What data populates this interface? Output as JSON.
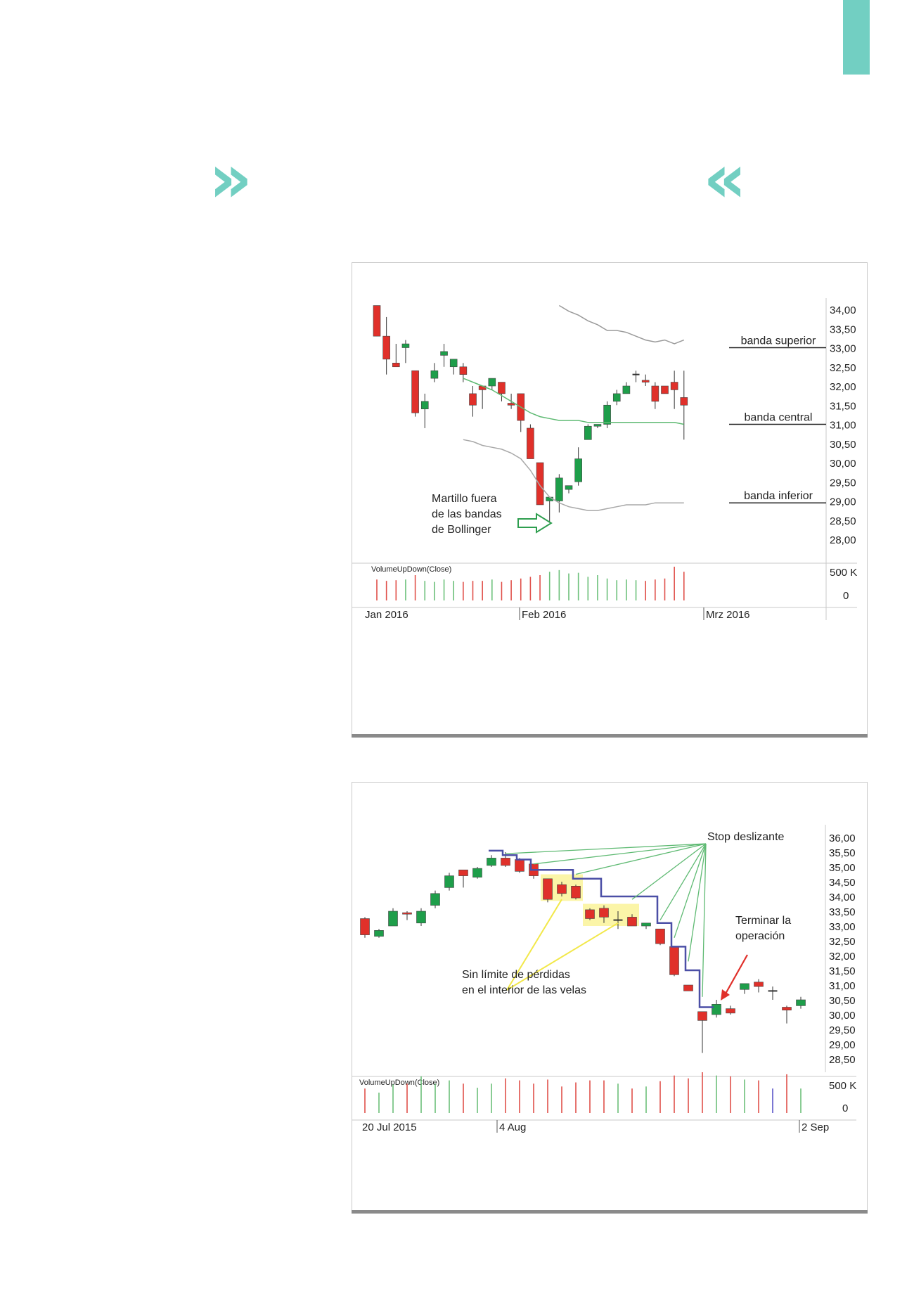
{
  "page": {
    "accent": "#72cfc2",
    "quote_open": "»",
    "quote_close": "«"
  },
  "chart_data": [
    {
      "type": "candlestick",
      "y_ticks": [
        "34,00",
        "33,50",
        "33,00",
        "32,50",
        "32,00",
        "31,50",
        "31,00",
        "30,50",
        "30,00",
        "29,50",
        "29,00",
        "28,50",
        "28,00"
      ],
      "ylim": [
        28.0,
        34.0
      ],
      "x_labels": [
        "Jan 2016",
        "Feb 2016",
        "Mrz 2016"
      ],
      "volume_label": "VolumeUpDown(Close)",
      "volume_ticks": [
        "500 K",
        "0"
      ],
      "annotations": {
        "upper": "banda superior",
        "middle": "banda central",
        "lower": "banda inferior",
        "hammer": [
          "Martillo fuera",
          "de las bandas",
          "de Bollinger"
        ]
      },
      "colors": {
        "up": "#1e9e4a",
        "down": "#e0302a",
        "upper_band": "#9a9a9a",
        "middle_band": "#5fba73",
        "lower_band": "#a8a8a8"
      },
      "candles": [
        {
          "o": 34.1,
          "h": 34.1,
          "l": 33.3,
          "c": 33.3
        },
        {
          "o": 33.3,
          "h": 33.8,
          "l": 32.3,
          "c": 32.7
        },
        {
          "o": 32.6,
          "h": 33.1,
          "l": 32.5,
          "c": 32.5
        },
        {
          "o": 33.0,
          "h": 33.2,
          "l": 32.6,
          "c": 33.1
        },
        {
          "o": 32.4,
          "h": 32.4,
          "l": 31.2,
          "c": 31.3
        },
        {
          "o": 31.4,
          "h": 31.8,
          "l": 30.9,
          "c": 31.6
        },
        {
          "o": 32.2,
          "h": 32.6,
          "l": 32.1,
          "c": 32.4
        },
        {
          "o": 32.8,
          "h": 33.1,
          "l": 32.5,
          "c": 32.9
        },
        {
          "o": 32.5,
          "h": 32.7,
          "l": 32.3,
          "c": 32.7
        },
        {
          "o": 32.5,
          "h": 32.6,
          "l": 32.1,
          "c": 32.3
        },
        {
          "o": 31.8,
          "h": 32.0,
          "l": 31.2,
          "c": 31.5
        },
        {
          "o": 32.0,
          "h": 32.0,
          "l": 31.4,
          "c": 31.9
        },
        {
          "o": 32.0,
          "h": 32.2,
          "l": 31.9,
          "c": 32.2
        },
        {
          "o": 32.1,
          "h": 32.1,
          "l": 31.6,
          "c": 31.8
        },
        {
          "o": 31.55,
          "h": 31.8,
          "l": 31.4,
          "c": 31.5
        },
        {
          "o": 31.8,
          "h": 31.8,
          "l": 30.8,
          "c": 31.1
        },
        {
          "o": 30.9,
          "h": 31.0,
          "l": 30.1,
          "c": 30.1
        },
        {
          "o": 30.0,
          "h": 30.0,
          "l": 28.9,
          "c": 28.9
        },
        {
          "o": 29.0,
          "h": 29.1,
          "l": 28.4,
          "c": 29.1
        },
        {
          "o": 29.0,
          "h": 29.7,
          "l": 28.7,
          "c": 29.6
        },
        {
          "o": 29.3,
          "h": 29.4,
          "l": 29.2,
          "c": 29.4
        },
        {
          "o": 29.5,
          "h": 30.4,
          "l": 29.4,
          "c": 30.1
        },
        {
          "o": 30.6,
          "h": 31.0,
          "l": 30.6,
          "c": 30.95
        },
        {
          "o": 30.95,
          "h": 31.0,
          "l": 30.9,
          "c": 31.0
        },
        {
          "o": 31.0,
          "h": 31.6,
          "l": 30.9,
          "c": 31.5
        },
        {
          "o": 31.6,
          "h": 31.9,
          "l": 31.5,
          "c": 31.8
        },
        {
          "o": 31.8,
          "h": 32.1,
          "l": 31.8,
          "c": 32.0
        },
        {
          "o": 32.3,
          "h": 32.4,
          "l": 32.1,
          "c": 32.3
        },
        {
          "o": 32.15,
          "h": 32.3,
          "l": 32.0,
          "c": 32.1
        },
        {
          "o": 32.0,
          "h": 32.1,
          "l": 31.4,
          "c": 31.6
        },
        {
          "o": 32.0,
          "h": 32.0,
          "l": 31.8,
          "c": 31.8
        },
        {
          "o": 32.1,
          "h": 32.4,
          "l": 31.4,
          "c": 31.9
        },
        {
          "o": 31.7,
          "h": 32.4,
          "l": 30.6,
          "c": 31.5
        }
      ],
      "upper_band": [
        null,
        null,
        null,
        null,
        null,
        null,
        null,
        null,
        null,
        null,
        null,
        null,
        null,
        null,
        null,
        null,
        null,
        null,
        null,
        34.1,
        33.95,
        33.85,
        33.7,
        33.6,
        33.45,
        33.45,
        33.4,
        33.3,
        33.2,
        33.15,
        33.2,
        33.1,
        33.2
      ],
      "middle_band": [
        null,
        null,
        null,
        null,
        null,
        null,
        null,
        null,
        null,
        32.2,
        32.1,
        32.0,
        31.9,
        31.75,
        31.6,
        31.45,
        31.3,
        31.2,
        31.15,
        31.1,
        31.1,
        31.1,
        31.05,
        31.05,
        31.05,
        31.05,
        31.05,
        31.05,
        31.05,
        31.05,
        31.05,
        31.05,
        31.0
      ],
      "lower_band": [
        null,
        null,
        null,
        null,
        null,
        null,
        null,
        null,
        null,
        30.6,
        30.55,
        30.45,
        30.4,
        30.35,
        30.25,
        30.1,
        29.8,
        29.4,
        29.1,
        28.95,
        28.85,
        28.8,
        28.75,
        28.75,
        28.8,
        28.85,
        28.9,
        28.9,
        28.9,
        28.95,
        28.95,
        28.95,
        28.95
      ],
      "volume": [
        0.62,
        0.58,
        0.6,
        0.62,
        0.75,
        0.58,
        0.55,
        0.62,
        0.58,
        0.55,
        0.58,
        0.58,
        0.62,
        0.55,
        0.6,
        0.65,
        0.7,
        0.75,
        0.85,
        0.9,
        0.8,
        0.82,
        0.7,
        0.75,
        0.65,
        0.6,
        0.62,
        0.6,
        0.58,
        0.62,
        0.65,
        1.0,
        0.85
      ]
    },
    {
      "type": "candlestick",
      "y_ticks": [
        "36,00",
        "35,50",
        "35,00",
        "34,50",
        "34,00",
        "33,50",
        "33,00",
        "32,50",
        "32,00",
        "31,50",
        "31,00",
        "30,50",
        "30,00",
        "29,50",
        "29,00",
        "28,50"
      ],
      "ylim": [
        28.5,
        36.0
      ],
      "x_labels": [
        "20 Jul 2015",
        "4 Aug",
        "2 Sep"
      ],
      "volume_label": "VolumeUpDown(Close)",
      "volume_ticks": [
        "500 K",
        "0"
      ],
      "annotations": {
        "stop": "Stop deslizante",
        "terminar": [
          "Terminar la",
          "operación"
        ],
        "sin_limite": [
          "Sin límite de pérdidas",
          "en el interior de las velas"
        ]
      },
      "colors": {
        "up": "#1e9e4a",
        "down": "#e0302a",
        "stop_line": "#4b4fa6",
        "pointer": "#5fba73",
        "highlight": "#fbf5a8",
        "sin_pointer": "#f2e84a",
        "arrow": "#e0302a"
      },
      "candles": [
        {
          "o": 33.25,
          "h": 33.3,
          "l": 32.6,
          "c": 32.7
        },
        {
          "o": 32.65,
          "h": 32.9,
          "l": 32.6,
          "c": 32.85
        },
        {
          "o": 33.0,
          "h": 33.6,
          "l": 33.0,
          "c": 33.5
        },
        {
          "o": 33.45,
          "h": 33.5,
          "l": 33.2,
          "c": 33.4
        },
        {
          "o": 33.1,
          "h": 33.6,
          "l": 33.0,
          "c": 33.5
        },
        {
          "o": 33.7,
          "h": 34.2,
          "l": 33.6,
          "c": 34.1
        },
        {
          "o": 34.3,
          "h": 34.8,
          "l": 34.2,
          "c": 34.7
        },
        {
          "o": 34.9,
          "h": 34.9,
          "l": 34.3,
          "c": 34.7
        },
        {
          "o": 34.65,
          "h": 35.0,
          "l": 34.6,
          "c": 34.95
        },
        {
          "o": 35.05,
          "h": 35.4,
          "l": 35.0,
          "c": 35.3
        },
        {
          "o": 35.3,
          "h": 35.5,
          "l": 35.0,
          "c": 35.05
        },
        {
          "o": 35.25,
          "h": 35.3,
          "l": 34.8,
          "c": 34.85
        },
        {
          "o": 35.1,
          "h": 35.1,
          "l": 34.6,
          "c": 34.7
        },
        {
          "o": 34.6,
          "h": 34.6,
          "l": 33.8,
          "c": 33.9
        },
        {
          "o": 34.4,
          "h": 34.5,
          "l": 34.0,
          "c": 34.1
        },
        {
          "o": 34.35,
          "h": 34.4,
          "l": 33.9,
          "c": 33.95
        },
        {
          "o": 33.55,
          "h": 33.6,
          "l": 33.2,
          "c": 33.25
        },
        {
          "o": 33.6,
          "h": 33.7,
          "l": 33.1,
          "c": 33.3
        },
        {
          "o": 33.2,
          "h": 33.5,
          "l": 32.9,
          "c": 33.2
        },
        {
          "o": 33.3,
          "h": 33.4,
          "l": 33.0,
          "c": 33.0
        },
        {
          "o": 33.0,
          "h": 33.1,
          "l": 32.9,
          "c": 33.1
        },
        {
          "o": 32.9,
          "h": 32.9,
          "l": 32.35,
          "c": 32.4
        },
        {
          "o": 32.3,
          "h": 32.3,
          "l": 31.3,
          "c": 31.35
        },
        {
          "o": 31.0,
          "h": 31.0,
          "l": 30.8,
          "c": 30.8
        },
        {
          "o": 30.1,
          "h": 30.1,
          "l": 28.7,
          "c": 29.8
        },
        {
          "o": 30.0,
          "h": 30.5,
          "l": 29.9,
          "c": 30.35
        },
        {
          "o": 30.2,
          "h": 30.3,
          "l": 30.0,
          "c": 30.05
        },
        {
          "o": 30.85,
          "h": 31.05,
          "l": 30.7,
          "c": 31.05
        },
        {
          "o": 31.1,
          "h": 31.2,
          "l": 30.75,
          "c": 30.95
        },
        {
          "o": 30.8,
          "h": 30.95,
          "l": 30.5,
          "c": 30.8
        },
        {
          "o": 30.25,
          "h": 30.3,
          "l": 29.7,
          "c": 30.15
        },
        {
          "o": 30.3,
          "h": 30.6,
          "l": 30.2,
          "c": 30.5
        }
      ],
      "trailing_stop": [
        [
          9,
          35.55
        ],
        [
          10,
          35.55
        ],
        [
          10,
          35.4
        ],
        [
          11,
          35.4
        ],
        [
          11,
          35.25
        ],
        [
          12,
          35.25
        ],
        [
          12,
          34.9
        ],
        [
          15,
          34.9
        ],
        [
          15,
          34.6
        ],
        [
          17,
          34.6
        ],
        [
          17,
          34.0
        ],
        [
          21,
          34.0
        ],
        [
          21,
          33.1
        ],
        [
          22,
          33.1
        ],
        [
          22,
          32.3
        ],
        [
          23,
          32.3
        ],
        [
          23,
          31.5
        ],
        [
          24,
          31.5
        ],
        [
          24,
          30.25
        ],
        [
          25,
          30.25
        ]
      ],
      "volume": [
        0.6,
        0.5,
        0.7,
        0.72,
        0.9,
        0.72,
        0.8,
        0.72,
        0.62,
        0.72,
        0.85,
        0.8,
        0.72,
        0.82,
        0.65,
        0.75,
        0.8,
        0.8,
        0.72,
        0.6,
        0.65,
        0.78,
        0.92,
        0.85,
        1.0,
        0.92,
        0.9,
        0.82,
        0.8,
        0.6,
        0.95,
        0.6
      ]
    }
  ]
}
